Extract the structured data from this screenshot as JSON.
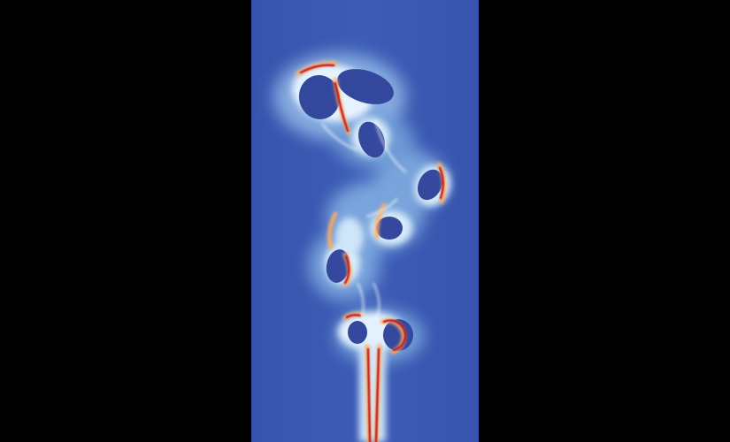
{
  "scene": {
    "kind": "fluid simulation visualization",
    "colormap": "blue-white-red",
    "colors": {
      "background": "#000000",
      "field_low": "#3a58b0",
      "field_mid": "#dff0ff",
      "field_high": "#d7191c",
      "edge_warm": "#fdae61"
    },
    "features": [
      "thin-vertical-jet",
      "rising-bubble-pair",
      "trailing-vortex-rings"
    ]
  }
}
